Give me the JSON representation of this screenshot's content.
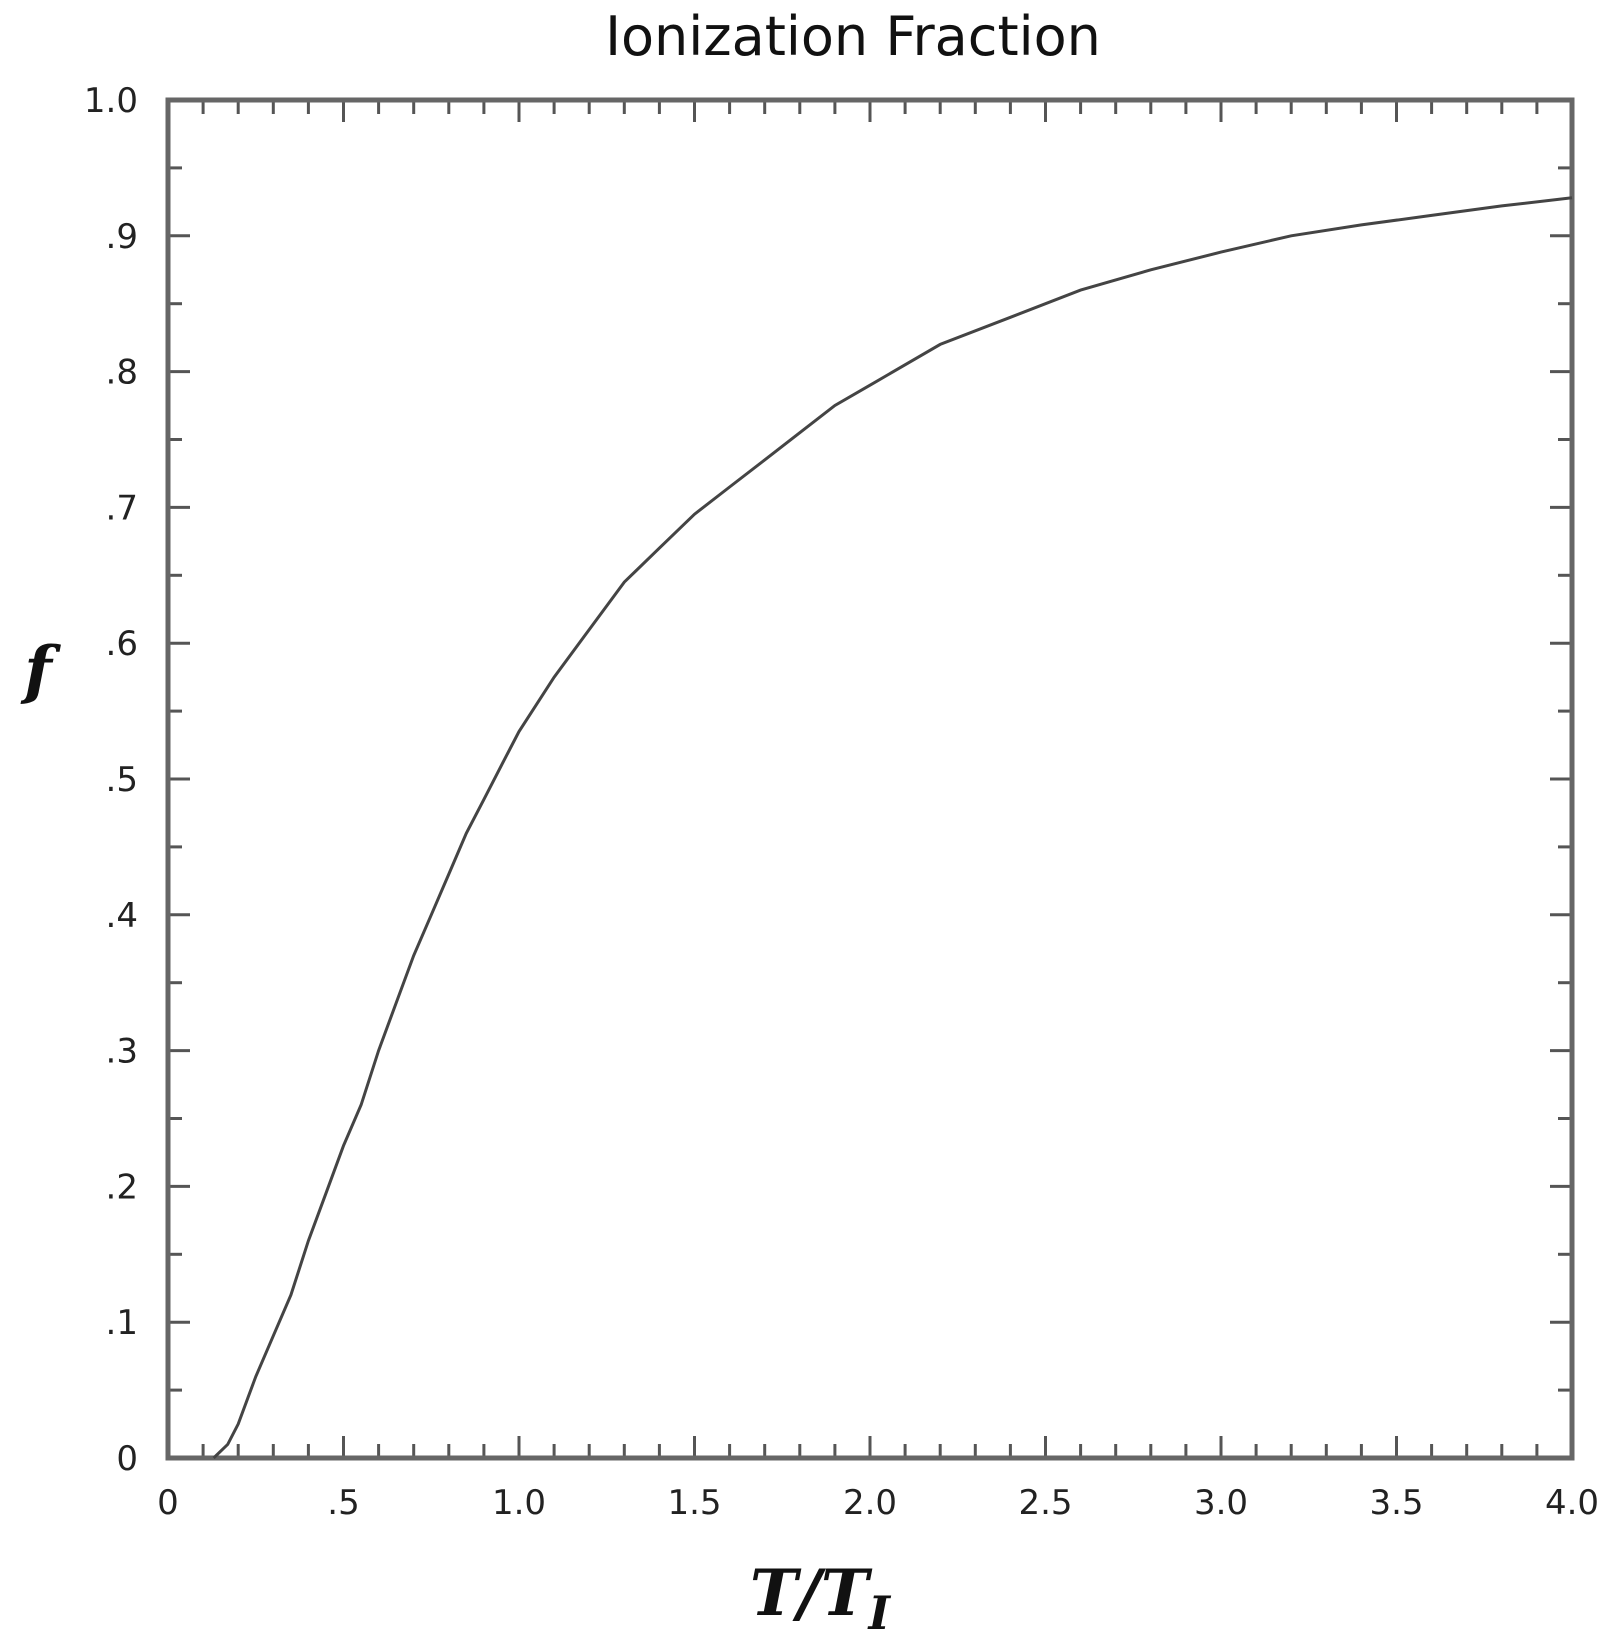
{
  "chart_data": {
    "type": "line",
    "title": "Ionization Fraction",
    "xlabel": "T/T",
    "xlabel_subscript": "I",
    "ylabel": "f",
    "xlim": [
      0,
      4.0
    ],
    "ylim": [
      0,
      1.0
    ],
    "x_tick_labels": [
      {
        "value": 0,
        "label": "0"
      },
      {
        "value": 0.5,
        "label": ".5"
      },
      {
        "value": 1.0,
        "label": "1.0"
      },
      {
        "value": 1.5,
        "label": "1.5"
      },
      {
        "value": 2.0,
        "label": "2.0"
      },
      {
        "value": 2.5,
        "label": "2.5"
      },
      {
        "value": 3.0,
        "label": "3.0"
      },
      {
        "value": 3.5,
        "label": "3.5"
      },
      {
        "value": 4.0,
        "label": "4.0"
      }
    ],
    "y_tick_labels": [
      {
        "value": 0,
        "label": "0"
      },
      {
        "value": 0.1,
        "label": ".1"
      },
      {
        "value": 0.2,
        "label": ".2"
      },
      {
        "value": 0.3,
        "label": ".3"
      },
      {
        "value": 0.4,
        "label": ".4"
      },
      {
        "value": 0.5,
        "label": ".5"
      },
      {
        "value": 0.6,
        "label": ".6"
      },
      {
        "value": 0.7,
        "label": ".7"
      },
      {
        "value": 0.8,
        "label": ".8"
      },
      {
        "value": 0.9,
        "label": ".9"
      },
      {
        "value": 1.0,
        "label": "1.0"
      }
    ],
    "x_minor_step": 0.1,
    "y_minor_step": 0.05,
    "grid": false,
    "series": [
      {
        "x": [
          0.13,
          0.17,
          0.2,
          0.25,
          0.3,
          0.35,
          0.4,
          0.45,
          0.5,
          0.55,
          0.6,
          0.65,
          0.7,
          0.75,
          0.8,
          0.85,
          0.9,
          0.95,
          1.0,
          1.1,
          1.2,
          1.3,
          1.4,
          1.5,
          1.6,
          1.7,
          1.8,
          1.9,
          2.0,
          2.2,
          2.4,
          2.6,
          2.8,
          3.0,
          3.2,
          3.4,
          3.6,
          3.8,
          4.0
        ],
        "y": [
          0.0,
          0.01,
          0.025,
          0.06,
          0.09,
          0.12,
          0.16,
          0.195,
          0.23,
          0.26,
          0.3,
          0.335,
          0.37,
          0.4,
          0.43,
          0.46,
          0.485,
          0.51,
          0.535,
          0.575,
          0.61,
          0.645,
          0.67,
          0.695,
          0.715,
          0.735,
          0.755,
          0.775,
          0.79,
          0.82,
          0.84,
          0.86,
          0.875,
          0.888,
          0.9,
          0.908,
          0.915,
          0.922,
          0.928
        ]
      }
    ]
  }
}
